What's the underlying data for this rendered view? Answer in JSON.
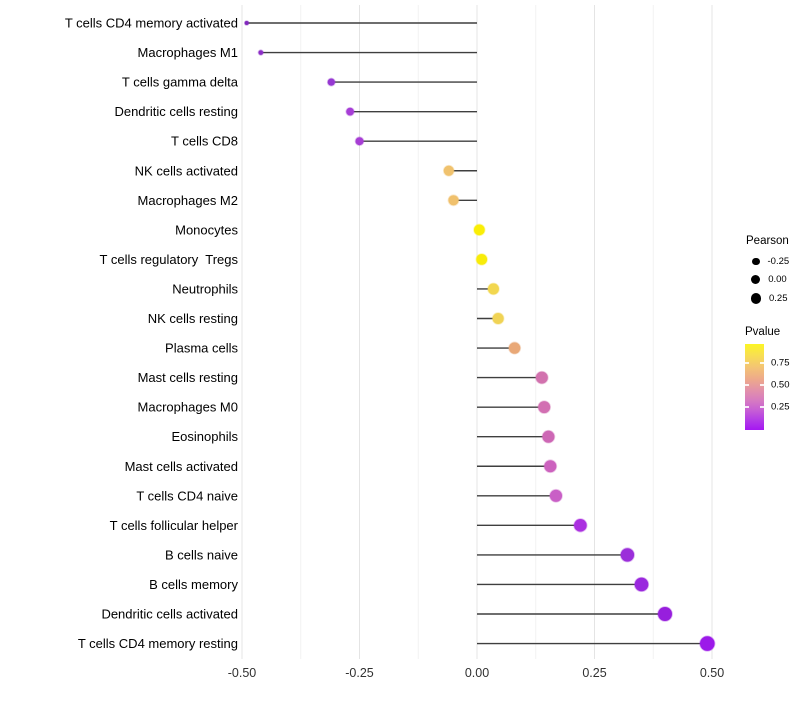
{
  "figure": {
    "background": "#ffffff"
  },
  "chart_data": {
    "type": "scatter",
    "variant": "lollipop",
    "orientation": "horizontal",
    "title": "",
    "xlabel": "",
    "ylabel": "",
    "categories": [
      "T cells CD4 memory activated",
      "Macrophages M1",
      "T cells gamma delta",
      "Dendritic cells resting",
      "T cells CD8",
      "NK cells activated",
      "Macrophages M2",
      "Monocytes",
      "T cells regulatory  Tregs",
      "Neutrophils",
      "NK cells resting",
      "Plasma cells",
      "Mast cells resting",
      "Macrophages M0",
      "Eosinophils",
      "Mast cells activated",
      "T cells CD4 naive",
      "T cells follicular helper",
      "B cells naive",
      "B cells memory",
      "Dendritic cells activated",
      "T cells CD4 memory resting"
    ],
    "values": [
      -0.49,
      -0.46,
      -0.31,
      -0.27,
      -0.25,
      -0.06,
      -0.05,
      0.005,
      0.01,
      0.035,
      0.045,
      0.08,
      0.138,
      0.143,
      0.152,
      0.156,
      0.168,
      0.22,
      0.32,
      0.35,
      0.4,
      0.49
    ],
    "colors": [
      "#8227bd",
      "#8c2ec6",
      "#9638d2",
      "#a73ed6",
      "#a73ed4",
      "#f0c26e",
      "#f0c16d",
      "#faee06",
      "#f8ec0a",
      "#f2d74f",
      "#f0d355",
      "#e9a877",
      "#d272ae",
      "#d26fb2",
      "#cd67b5",
      "#cc62be",
      "#c95fc6",
      "#ab30e0",
      "#9b2eda",
      "#9a28de",
      "#971fdd",
      "#9c1ae9"
    ],
    "x_ticks": [
      -0.5,
      -0.25,
      0.0,
      0.25,
      0.5
    ],
    "x_tick_labels": [
      "-0.50",
      "-0.25",
      "0.00",
      "0.25",
      "0.50"
    ],
    "xlim": [
      -0.55,
      0.54
    ],
    "grid": {
      "major": [
        -0.5,
        -0.25,
        0.0,
        0.25,
        0.5
      ],
      "minor": [
        -0.375,
        -0.125,
        0.125,
        0.375
      ],
      "major_color": "#e4e4e4",
      "minor_color": "#f1f1f1"
    },
    "stem_color": "#3f3f3f",
    "size_encoding": "Pearson",
    "color_encoding": "Pvalue",
    "legend_position": "right"
  },
  "legends": {
    "size": {
      "title": "Pearson",
      "items": [
        "-0.25",
        "0.00",
        "0.25"
      ]
    },
    "color": {
      "title": "Pvalue",
      "tick_labels": [
        "0.75",
        "0.50",
        "0.25"
      ],
      "gradient_stops": [
        "#fcf524 0%",
        "#f8e14f 12%",
        "#f3c276 28%",
        "#eda78d 42%",
        "#e494a6 52%",
        "#d77cc0 65%",
        "#c55cd6 78%",
        "#b23ae7 89%",
        "#a517f2 100%"
      ]
    }
  }
}
